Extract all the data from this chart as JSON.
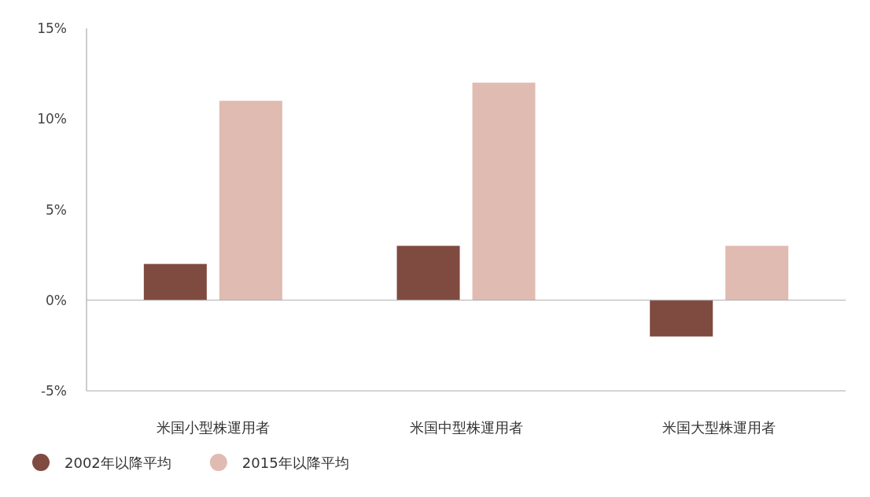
{
  "chart_data": {
    "type": "bar",
    "categories": [
      "米国小型株運用者",
      "米国中型株運用者",
      "米国大型株運用者"
    ],
    "series": [
      {
        "name": "2002年以降平均",
        "color": "#7f4a40",
        "values": [
          2,
          3,
          -2
        ]
      },
      {
        "name": "2015年以降平均",
        "color": "#e0bbb1",
        "values": [
          11,
          12,
          3
        ]
      }
    ],
    "ylim": [
      -5,
      15
    ],
    "yticks": [
      {
        "value": -5,
        "label": "-5%"
      },
      {
        "value": 0,
        "label": "0%"
      },
      {
        "value": 5,
        "label": "5%"
      },
      {
        "value": 10,
        "label": "10%"
      },
      {
        "value": 15,
        "label": "15%"
      }
    ],
    "legend": "bottom left"
  }
}
